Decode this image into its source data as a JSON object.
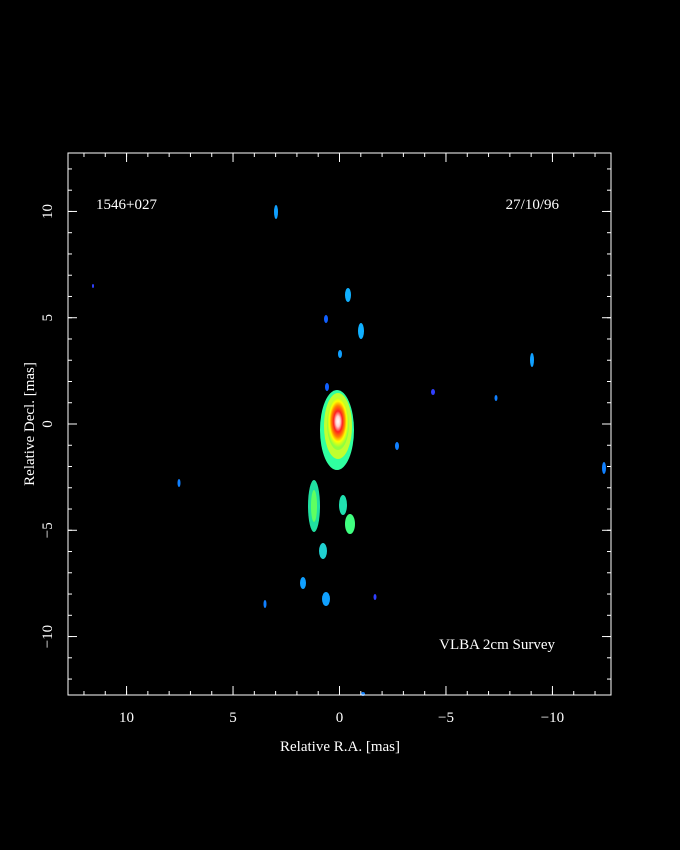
{
  "chart_data": {
    "type": "image",
    "annotations": [
      "1546+027",
      "27/10/96",
      "VLBA 2cm Survey"
    ],
    "xlabel": "Relative R.A. [mas]",
    "ylabel": "Relative Decl. [mas]",
    "xlim": [
      12.75,
      -12.75
    ],
    "ylim": [
      -12.75,
      12.75
    ],
    "xticks": [
      10,
      5,
      0,
      {
        "value": -5,
        "label": "−5"
      },
      {
        "value": -10,
        "label": "−10"
      }
    ],
    "yticks": [
      {
        "value": -10,
        "label": "−10"
      },
      {
        "value": -5,
        "label": "−5"
      },
      0,
      5,
      10
    ]
  }
}
